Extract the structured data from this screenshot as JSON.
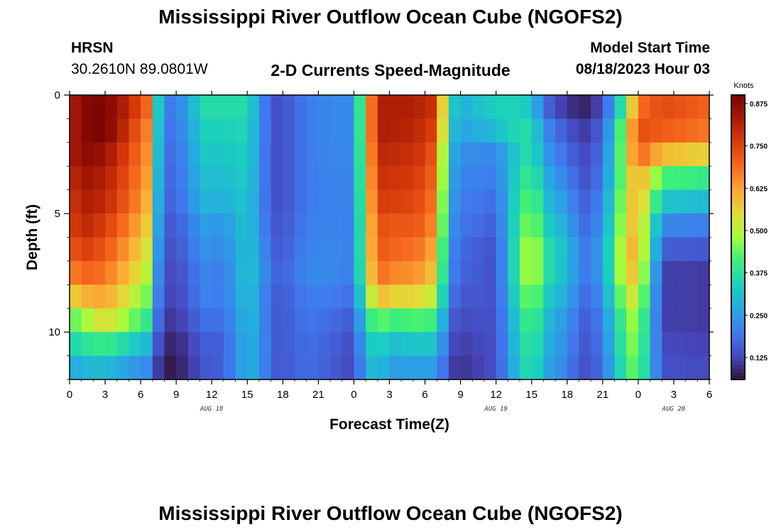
{
  "header": {
    "title": "Mississippi River Outflow Ocean Cube (NGOFS2)",
    "station": "HRSN",
    "coordinates": "30.2610N  89.0801W",
    "subtitle": "2-D Currents Speed-Magnitude",
    "start_label": "Model Start Time",
    "start_value": "08/18/2023 Hour 03"
  },
  "footer": {
    "title": "Mississippi River Outflow Ocean Cube (NGOFS2)"
  },
  "chart_data": {
    "type": "heatmap",
    "title": "2-D Currents Speed-Magnitude",
    "xlabel": "Forecast Time(Z)",
    "ylabel": "Depth (ft)",
    "x_tick_labels": [
      "0",
      "3",
      "6",
      "9",
      "12",
      "15",
      "18",
      "21",
      "0",
      "3",
      "6",
      "9",
      "12",
      "15",
      "18",
      "21",
      "0",
      "3",
      "6"
    ],
    "x_range_hours": [
      0,
      54
    ],
    "date_labels": [
      {
        "text": "AUG 18",
        "hour": 12
      },
      {
        "text": "AUG 19",
        "hour": 36
      },
      {
        "text": "AUG 20",
        "hour": 51
      }
    ],
    "y_tick_labels": [
      "0",
      "5",
      "10"
    ],
    "y_ticks": [
      0,
      5,
      10
    ],
    "y_range": [
      0,
      12
    ],
    "depth_levels": [
      0.5,
      1.5,
      2.5,
      3.5,
      4.5,
      5.5,
      6.5,
      7.5,
      8.5,
      9.5,
      10.5,
      11.5
    ],
    "colorbar": {
      "unit": "Knots",
      "tick_labels": [
        "0.875",
        "0.750",
        "0.625",
        "0.500",
        "0.375",
        "0.250",
        "0.125"
      ],
      "ticks": [
        0.875,
        0.75,
        0.625,
        0.5,
        0.375,
        0.25,
        0.125
      ],
      "range": [
        0.06,
        0.9
      ]
    },
    "surface_speed_knots": [
      [
        0,
        0.8
      ],
      [
        1,
        0.88
      ],
      [
        3,
        0.9
      ],
      [
        5,
        0.8
      ],
      [
        6.5,
        0.7
      ],
      [
        7.2,
        0.4
      ],
      [
        8,
        0.2
      ],
      [
        9,
        0.2
      ],
      [
        10.5,
        0.3
      ],
      [
        11,
        0.36
      ],
      [
        13,
        0.36
      ],
      [
        15,
        0.36
      ],
      [
        16,
        0.25
      ],
      [
        17,
        0.14
      ],
      [
        18,
        0.14
      ],
      [
        20,
        0.2
      ],
      [
        22,
        0.22
      ],
      [
        24,
        0.22
      ],
      [
        25,
        0.55
      ],
      [
        26,
        0.82
      ],
      [
        29,
        0.82
      ],
      [
        31,
        0.78
      ],
      [
        32,
        0.35
      ],
      [
        33,
        0.28
      ],
      [
        35,
        0.32
      ],
      [
        37,
        0.35
      ],
      [
        39,
        0.32
      ],
      [
        40,
        0.18
      ],
      [
        42,
        0.1
      ],
      [
        44,
        0.08
      ],
      [
        45,
        0.15
      ],
      [
        46,
        0.25
      ],
      [
        48,
        0.68
      ],
      [
        50,
        0.74
      ],
      [
        52,
        0.72
      ],
      [
        54,
        0.7
      ]
    ],
    "speed_profile_rows": [
      {
        "hour": 1,
        "values": [
          0.85,
          0.85,
          0.85,
          0.82,
          0.8,
          0.78,
          0.74,
          0.68,
          0.58,
          0.45,
          0.36,
          0.28
        ]
      },
      {
        "hour": 3,
        "values": [
          0.9,
          0.9,
          0.85,
          0.82,
          0.8,
          0.76,
          0.72,
          0.68,
          0.62,
          0.55,
          0.4,
          0.3
        ]
      },
      {
        "hour": 6,
        "values": [
          0.8,
          0.76,
          0.74,
          0.72,
          0.7,
          0.66,
          0.62,
          0.58,
          0.52,
          0.45,
          0.34,
          0.25
        ]
      },
      {
        "hour": 13,
        "values": [
          0.36,
          0.34,
          0.32,
          0.3,
          0.28,
          0.24,
          0.22,
          0.2,
          0.2,
          0.18,
          0.16,
          0.16
        ]
      },
      {
        "hour": 17,
        "values": [
          0.14,
          0.14,
          0.14,
          0.14,
          0.14,
          0.15,
          0.16,
          0.17,
          0.16,
          0.16,
          0.16,
          0.16
        ]
      },
      {
        "hour": 27,
        "values": [
          0.82,
          0.82,
          0.8,
          0.78,
          0.76,
          0.72,
          0.7,
          0.66,
          0.56,
          0.4,
          0.3,
          0.25
        ]
      },
      {
        "hour": 30,
        "values": [
          0.8,
          0.78,
          0.76,
          0.74,
          0.72,
          0.7,
          0.66,
          0.62,
          0.54,
          0.42,
          0.32,
          0.25
        ]
      },
      {
        "hour": 36,
        "values": [
          0.34,
          0.3,
          0.22,
          0.2,
          0.18,
          0.16,
          0.14,
          0.14,
          0.14,
          0.14,
          0.14,
          0.14
        ]
      },
      {
        "hour": 42,
        "values": [
          0.07,
          0.1,
          0.12,
          0.14,
          0.16,
          0.18,
          0.2,
          0.2,
          0.18,
          0.16,
          0.15,
          0.14
        ]
      },
      {
        "hour": 50,
        "values": [
          0.75,
          0.72,
          0.6,
          0.42,
          0.32,
          0.22,
          0.16,
          0.12,
          0.12,
          0.12,
          0.13,
          0.14
        ]
      }
    ]
  }
}
